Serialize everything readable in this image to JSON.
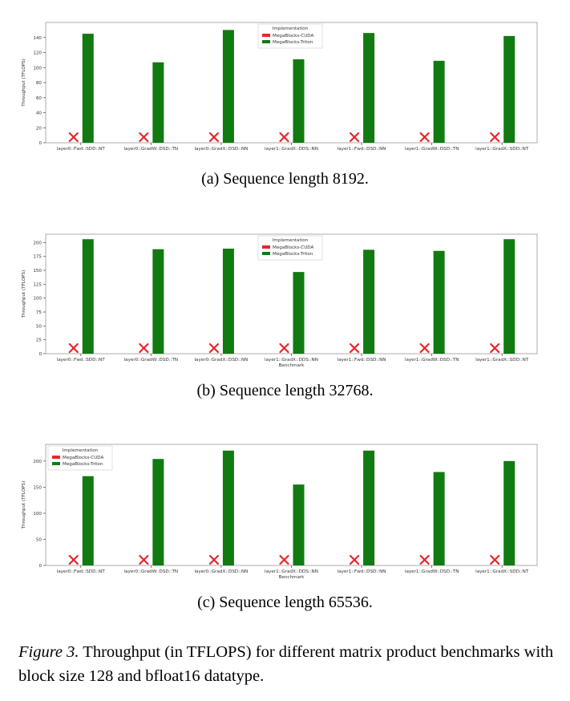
{
  "chart_data": [
    {
      "type": "bar",
      "categories": [
        "layer0::Fwd::SDD::NT",
        "layer0::GradW::DSD::TN",
        "layer0::GradX::DSD::NN",
        "layer1::GradX::DDS::NN",
        "layer1::Fwd::DSD::NN",
        "layer1::GradW::DSD::TN",
        "layer1::GradX::SDD::NT"
      ],
      "series": [
        {
          "name": "MegaBlocks-CUDA",
          "values": [
            0,
            0,
            0,
            0,
            0,
            0,
            0
          ],
          "marker": "X",
          "color": "#e8262b"
        },
        {
          "name": "MegaBlocks-Triton",
          "values": [
            145,
            107,
            150,
            111,
            146,
            109,
            142
          ],
          "color": "#117a11"
        }
      ],
      "ylabel": "Throughput (TFLOPS)",
      "xlabel": "",
      "ylim": [
        0,
        160
      ],
      "yticks": [
        0,
        20,
        40,
        60,
        80,
        100,
        120,
        140
      ],
      "legend_title": "Implementation",
      "legend_position": "top-center",
      "caption": "(a) Sequence length 8192."
    },
    {
      "type": "bar",
      "categories": [
        "layer0::Fwd::SDD::NT",
        "layer0::GradW::DSD::TN",
        "layer0::GradX::DSD::NN",
        "layer1::GradX::DDS::NN",
        "layer1::Fwd::DSD::NN",
        "layer1::GradW::DSD::TN",
        "layer1::GradX::SDD::NT"
      ],
      "series": [
        {
          "name": "MegaBlocks-CUDA",
          "values": [
            0,
            0,
            0,
            0,
            0,
            0,
            0
          ],
          "marker": "X",
          "color": "#e8262b"
        },
        {
          "name": "MegaBlocks-Triton",
          "values": [
            206,
            188,
            189,
            147,
            187,
            185,
            206
          ],
          "color": "#117a11"
        }
      ],
      "ylabel": "Throughput (TFLOPS)",
      "xlabel": "Benchmark",
      "ylim": [
        0,
        215
      ],
      "yticks": [
        0,
        25,
        50,
        75,
        100,
        125,
        150,
        175,
        200
      ],
      "legend_title": "Implementation",
      "legend_position": "top-center",
      "caption": "(b) Sequence length 32768."
    },
    {
      "type": "bar",
      "categories": [
        "layer0::Fwd::SDD::NT",
        "layer0::GradW::DSD::TN",
        "layer0::GradX::DSD::NN",
        "layer1::GradX::DDS::NN",
        "layer1::Fwd::DSD::NN",
        "layer1::GradW::DSD::TN",
        "layer1::GradX::SDD::NT"
      ],
      "series": [
        {
          "name": "MegaBlocks-CUDA",
          "values": [
            0,
            0,
            0,
            0,
            0,
            0,
            0
          ],
          "marker": "X",
          "color": "#e8262b"
        },
        {
          "name": "MegaBlocks-Triton",
          "values": [
            171,
            204,
            220,
            155,
            220,
            179,
            200
          ],
          "color": "#117a11"
        }
      ],
      "ylabel": "Throughput (TFLOPS)",
      "xlabel": "Benchmark",
      "ylim": [
        0,
        232
      ],
      "yticks": [
        0,
        50,
        100,
        150,
        200
      ],
      "legend_title": "Implementation",
      "legend_position": "top-left",
      "caption": "(c) Sequence length 65536."
    }
  ],
  "figure_caption": {
    "label": "Figure 3.",
    "text": " Throughput (in TFLOPS) for different matrix product benchmarks with block size 128 and bfloat16 datatype."
  }
}
